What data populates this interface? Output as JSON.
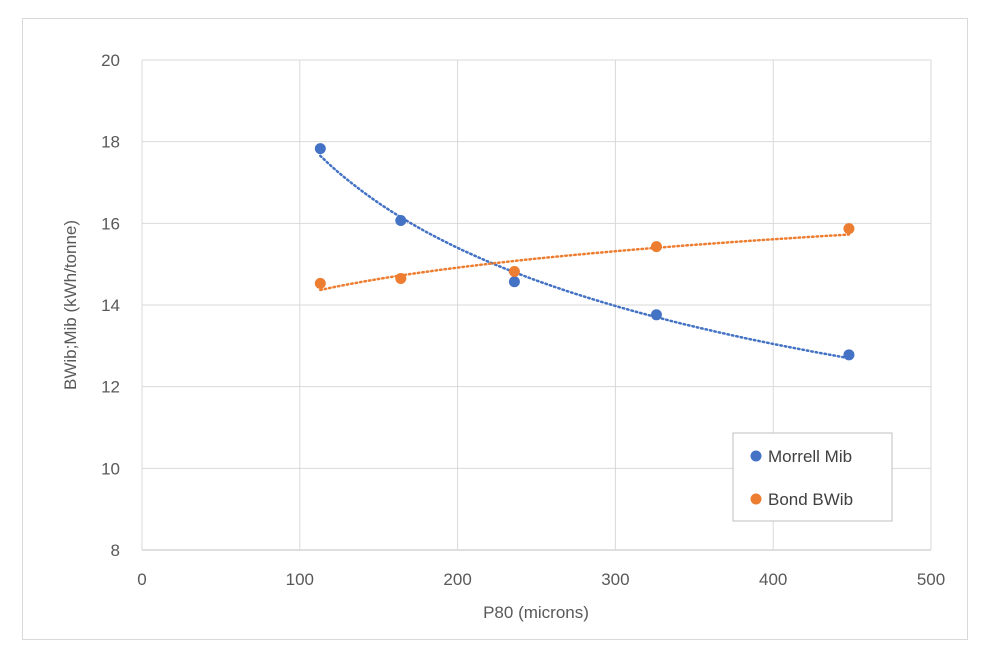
{
  "chart_data": {
    "type": "scatter",
    "title": "",
    "xlabel": "P80 (microns)",
    "ylabel": "BWib;Mib (kWh/tonne)",
    "xlim": [
      0,
      500
    ],
    "ylim": [
      8,
      20
    ],
    "xticks": [
      0,
      100,
      200,
      300,
      400,
      500
    ],
    "yticks": [
      8,
      10,
      12,
      14,
      16,
      18,
      20
    ],
    "grid": true,
    "legend_position": "bottom-right",
    "series": [
      {
        "name": "Morrell Mib",
        "color": "#4472c4",
        "x": [
          113,
          164,
          236,
          326,
          448
        ],
        "y": [
          17.83,
          16.07,
          14.57,
          13.76,
          12.78
        ],
        "trendline": "power"
      },
      {
        "name": "Bond BWib",
        "color": "#ed7d31",
        "x": [
          113,
          164,
          236,
          326,
          448
        ],
        "y": [
          14.53,
          14.65,
          14.82,
          15.43,
          15.87
        ],
        "trendline": "power"
      }
    ]
  }
}
